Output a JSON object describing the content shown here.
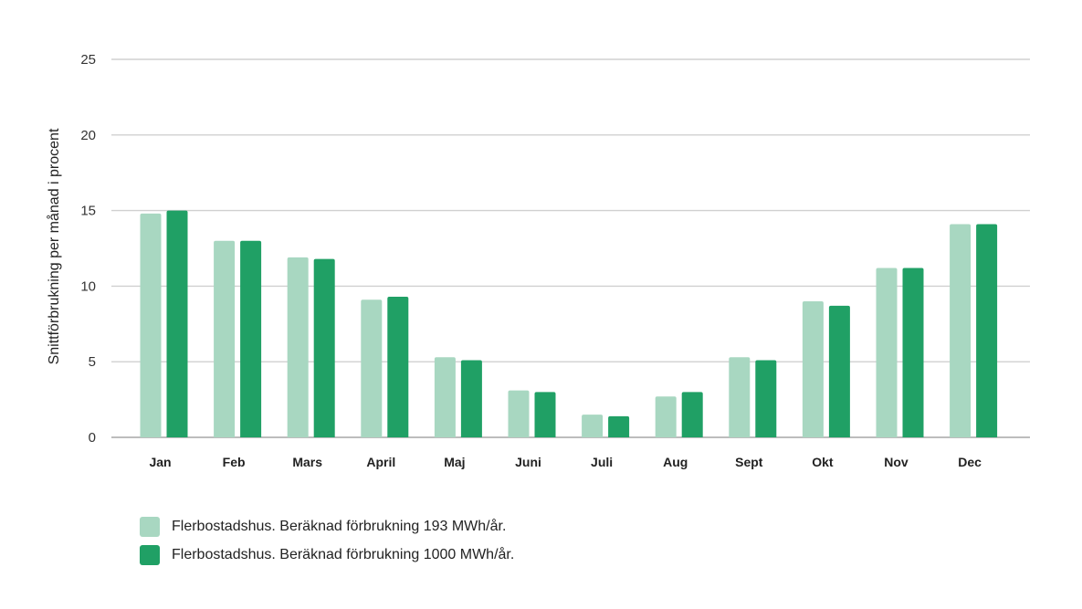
{
  "chart_data": {
    "type": "bar",
    "title": "",
    "xlabel": "",
    "ylabel": "Snittförbrukning per månad i procent",
    "ylim": [
      0,
      25
    ],
    "yticks": [
      0,
      5,
      10,
      15,
      20,
      25
    ],
    "grid": true,
    "legend_position": "bottom-left",
    "categories": [
      "Jan",
      "Feb",
      "Mars",
      "April",
      "Maj",
      "Juni",
      "Juli",
      "Aug",
      "Sept",
      "Okt",
      "Nov",
      "Dec"
    ],
    "series": [
      {
        "name": "Flerbostadshus. Beräknad förbrukning 193 MWh/år.",
        "color": "#a8d7c1",
        "values": [
          14.8,
          13.0,
          11.9,
          9.1,
          5.3,
          3.1,
          1.5,
          2.7,
          5.3,
          9.0,
          11.2,
          14.1
        ]
      },
      {
        "name": "Flerbostadshus. Beräknad förbrukning 1000 MWh/år.",
        "color": "#20a065",
        "values": [
          15.0,
          13.0,
          11.8,
          9.3,
          5.1,
          3.0,
          1.4,
          3.0,
          5.1,
          8.7,
          11.2,
          14.1
        ]
      }
    ]
  }
}
